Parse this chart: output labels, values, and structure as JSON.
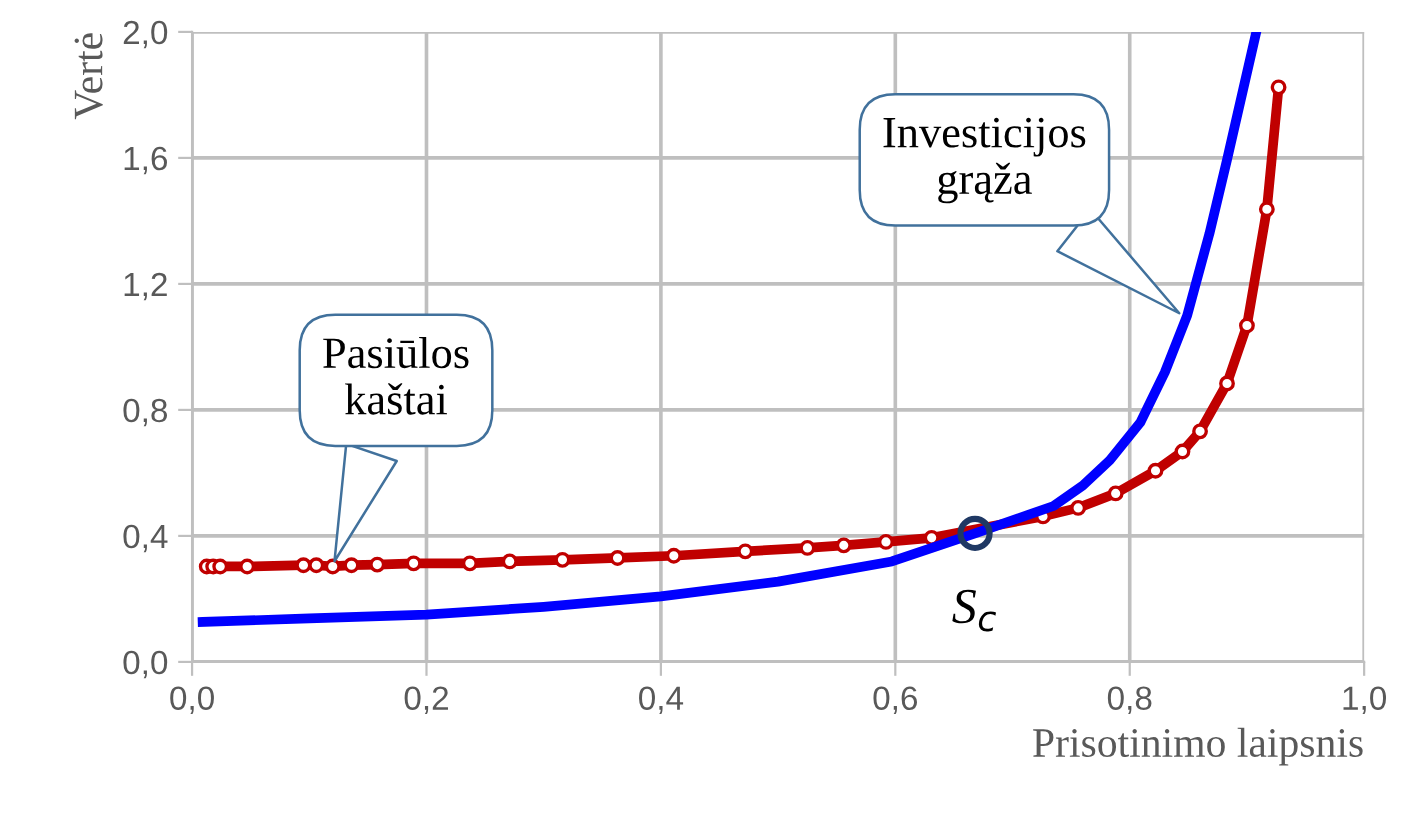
{
  "chart_data": {
    "type": "line",
    "xlabel": "Prisotinimo laipsnis",
    "ylabel": "Vertė",
    "xlim": [
      0,
      1.0
    ],
    "ylim": [
      0,
      2.0
    ],
    "xticks": [
      {
        "value": 0,
        "label": "0,0"
      },
      {
        "value": 0.2,
        "label": "0,2"
      },
      {
        "value": 0.4,
        "label": "0,4"
      },
      {
        "value": 0.6,
        "label": "0,6"
      },
      {
        "value": 0.8,
        "label": "0,8"
      },
      {
        "value": 1.0,
        "label": "1,0"
      }
    ],
    "yticks": [
      {
        "value": 0,
        "label": "0,0"
      },
      {
        "value": 0.4,
        "label": "0,4"
      },
      {
        "value": 0.8,
        "label": "0,8"
      },
      {
        "value": 1.2,
        "label": "1,2"
      },
      {
        "value": 1.6,
        "label": "1,6"
      },
      {
        "value": 2.0,
        "label": "2,0"
      }
    ],
    "grid": true,
    "legend": false,
    "series": [
      {
        "color": "#c00000",
        "marker": "circle",
        "x": [
          0.0125,
          0.018,
          0.024,
          0.047,
          0.095,
          0.106,
          0.12,
          0.136,
          0.158,
          0.189,
          0.237,
          0.271,
          0.316,
          0.363,
          0.411,
          0.472,
          0.525,
          0.556,
          0.592,
          0.631,
          0.726,
          0.756,
          0.788,
          0.822,
          0.845,
          0.86,
          0.883,
          0.9,
          0.917,
          0.927
        ],
        "values": [
          0.303,
          0.303,
          0.303,
          0.303,
          0.307,
          0.307,
          0.303,
          0.307,
          0.309,
          0.313,
          0.313,
          0.319,
          0.324,
          0.33,
          0.337,
          0.351,
          0.362,
          0.37,
          0.381,
          0.394,
          0.462,
          0.489,
          0.535,
          0.607,
          0.668,
          0.732,
          0.884,
          1.068,
          1.437,
          1.824
        ]
      },
      {
        "color": "#0000ff",
        "marker": "none",
        "x": [
          0.009,
          0.1,
          0.2,
          0.3,
          0.4,
          0.5,
          0.597,
          0.668,
          0.735,
          0.76,
          0.783,
          0.809,
          0.83,
          0.849,
          0.868,
          0.883,
          0.908
        ],
        "values": [
          0.127,
          0.138,
          0.15,
          0.175,
          0.208,
          0.255,
          0.319,
          0.408,
          0.495,
          0.56,
          0.64,
          0.76,
          0.92,
          1.1,
          1.36,
          1.594,
          2.0
        ]
      },
      {
        "type": "scatter",
        "color": "#1f3864",
        "marker": "circle",
        "x": [
          0.668
        ],
        "values": [
          0.408
        ]
      }
    ],
    "annotations": [
      "Pasiūlos\nkaštai",
      "Investicijos\ngrąža",
      {
        "text": "S$_{c}$",
        "x": 0.668,
        "y": 0.408
      }
    ]
  }
}
